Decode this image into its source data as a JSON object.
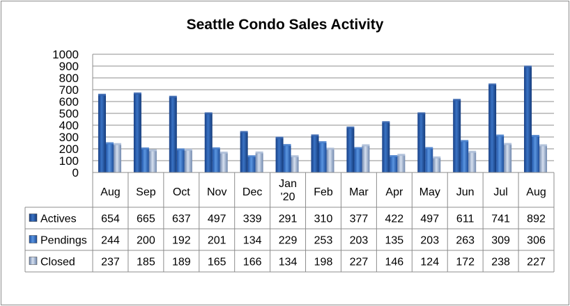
{
  "chart_data": {
    "type": "bar",
    "title": "Seattle Condo Sales Activity",
    "categories": [
      "Aug",
      "Sep",
      "Oct",
      "Nov",
      "Dec",
      "Jan\n'20",
      "Feb",
      "Mar",
      "Apr",
      "May",
      "Jun",
      "Jul",
      "Aug"
    ],
    "series": [
      {
        "name": "Actives",
        "values": [
          654,
          665,
          637,
          497,
          339,
          291,
          310,
          377,
          422,
          497,
          611,
          741,
          892
        ],
        "color": "#2a5aa8"
      },
      {
        "name": "Pendings",
        "values": [
          244,
          200,
          192,
          201,
          134,
          229,
          253,
          203,
          135,
          203,
          263,
          309,
          306
        ],
        "color": "#3f79c9"
      },
      {
        "name": "Closed",
        "values": [
          237,
          185,
          189,
          165,
          166,
          134,
          198,
          227,
          146,
          124,
          172,
          238,
          227
        ],
        "color": "#a9bbd6"
      }
    ],
    "ylim": [
      0,
      1000
    ],
    "yticks": [
      0,
      100,
      200,
      300,
      400,
      500,
      600,
      700,
      800,
      900,
      1000
    ],
    "grid": true,
    "legend": "data-table",
    "xlabel": "",
    "ylabel": ""
  }
}
